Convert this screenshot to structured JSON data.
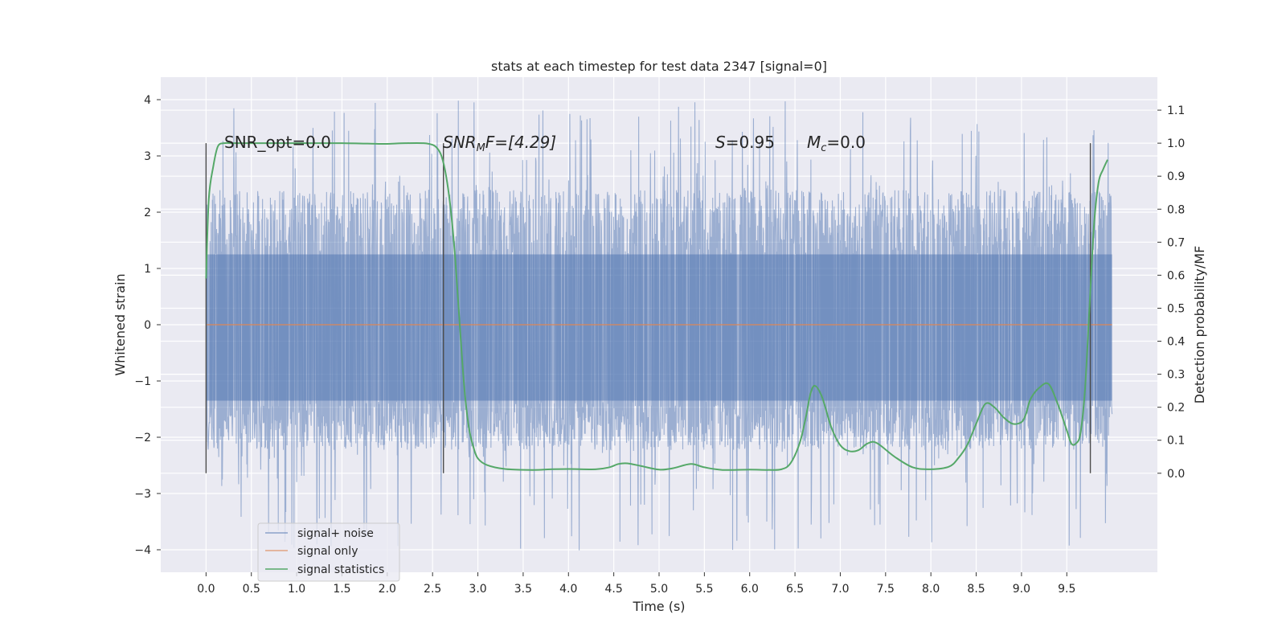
{
  "chart_data": {
    "type": "line",
    "title": "stats at each timestep for test data 2347 [signal=0]",
    "xlabel": "Time (s)",
    "ylabel": "Whitened strain",
    "y2label": "Detection probability/MF",
    "xlim": [
      -0.5,
      10.5
    ],
    "ylim": [
      -4.4,
      4.4
    ],
    "y2lim": [
      -0.3,
      1.2
    ],
    "xticks": [
      "0.0",
      "0.5",
      "1.0",
      "1.5",
      "2.0",
      "2.5",
      "3.0",
      "3.5",
      "4.0",
      "4.5",
      "5.0",
      "5.5",
      "6.0",
      "6.5",
      "7.0",
      "7.5",
      "8.0",
      "8.5",
      "9.0",
      "9.5"
    ],
    "yticks": [
      "4",
      "3",
      "2",
      "1",
      "0",
      "−1",
      "−2",
      "−3",
      "−4"
    ],
    "y2ticks": [
      "1.1",
      "1.0",
      "0.9",
      "0.8",
      "0.7",
      "0.6",
      "0.5",
      "0.4",
      "0.3",
      "0.2",
      "0.1",
      "0.0"
    ],
    "grid": true,
    "legend_position": "lower-left",
    "colors": {
      "background": "#eaeaf2",
      "noise": "#4c72b0",
      "signal": "#dd8452",
      "stats": "#55a868",
      "vline": "#4d4d4d"
    },
    "annotations": {
      "snr_opt": "SNR_opt=0.0",
      "snr_mf_base": "SNR",
      "snr_mf_sub": "M",
      "snr_mf_rest": "F=[4.29]",
      "s_italic": "S",
      "s_rest": "=0.95",
      "mc_base": "M",
      "mc_sub": "c",
      "mc_rest": "=0.0"
    },
    "vertical_lines_x": [
      0.0,
      2.62,
      9.76
    ],
    "noise_range": {
      "x_start": 0.0,
      "x_end": 10.0,
      "band_low": -1.35,
      "band_high": 1.25,
      "min": -4.05,
      "max": 4.0
    },
    "series": [
      {
        "name": "signal+ noise",
        "axis": "left",
        "style": "noise"
      },
      {
        "name": "signal only",
        "axis": "left",
        "x": [
          0.0,
          10.0
        ],
        "y": [
          0.0,
          0.0
        ]
      },
      {
        "name": "signal statistics",
        "axis": "right",
        "x": [
          0.0,
          0.03,
          0.08,
          0.13,
          0.2,
          0.3,
          0.5,
          1.0,
          1.5,
          1.9,
          2.0,
          2.2,
          2.4,
          2.5,
          2.55,
          2.6,
          2.65,
          2.7,
          2.75,
          2.8,
          2.85,
          2.9,
          2.95,
          3.0,
          3.1,
          3.3,
          3.6,
          3.8,
          4.0,
          4.3,
          4.45,
          4.55,
          4.65,
          4.8,
          5.0,
          5.15,
          5.35,
          5.5,
          5.7,
          6.0,
          6.2,
          6.35,
          6.45,
          6.55,
          6.62,
          6.67,
          6.72,
          6.8,
          6.9,
          7.0,
          7.1,
          7.2,
          7.3,
          7.4,
          7.6,
          7.8,
          8.0,
          8.2,
          8.3,
          8.4,
          8.5,
          8.6,
          8.7,
          8.8,
          8.9,
          9.0,
          9.05,
          9.1,
          9.2,
          9.3,
          9.4,
          9.5,
          9.55,
          9.6,
          9.65,
          9.7,
          9.75,
          9.8,
          9.85,
          9.9,
          9.95
        ],
        "y": [
          0.59,
          0.83,
          0.93,
          0.99,
          1.0,
          1.0,
          1.0,
          1.0,
          1.0,
          0.998,
          0.998,
          1.0,
          1.0,
          0.995,
          0.985,
          0.96,
          0.9,
          0.8,
          0.65,
          0.45,
          0.26,
          0.14,
          0.08,
          0.045,
          0.025,
          0.013,
          0.01,
          0.012,
          0.013,
          0.012,
          0.018,
          0.028,
          0.03,
          0.022,
          0.011,
          0.015,
          0.028,
          0.018,
          0.01,
          0.011,
          0.01,
          0.012,
          0.03,
          0.09,
          0.17,
          0.24,
          0.265,
          0.23,
          0.14,
          0.085,
          0.067,
          0.07,
          0.09,
          0.092,
          0.05,
          0.018,
          0.012,
          0.02,
          0.045,
          0.085,
          0.15,
          0.21,
          0.2,
          0.17,
          0.15,
          0.155,
          0.18,
          0.225,
          0.26,
          0.27,
          0.21,
          0.13,
          0.09,
          0.09,
          0.12,
          0.25,
          0.5,
          0.75,
          0.88,
          0.92,
          0.95
        ]
      }
    ]
  }
}
